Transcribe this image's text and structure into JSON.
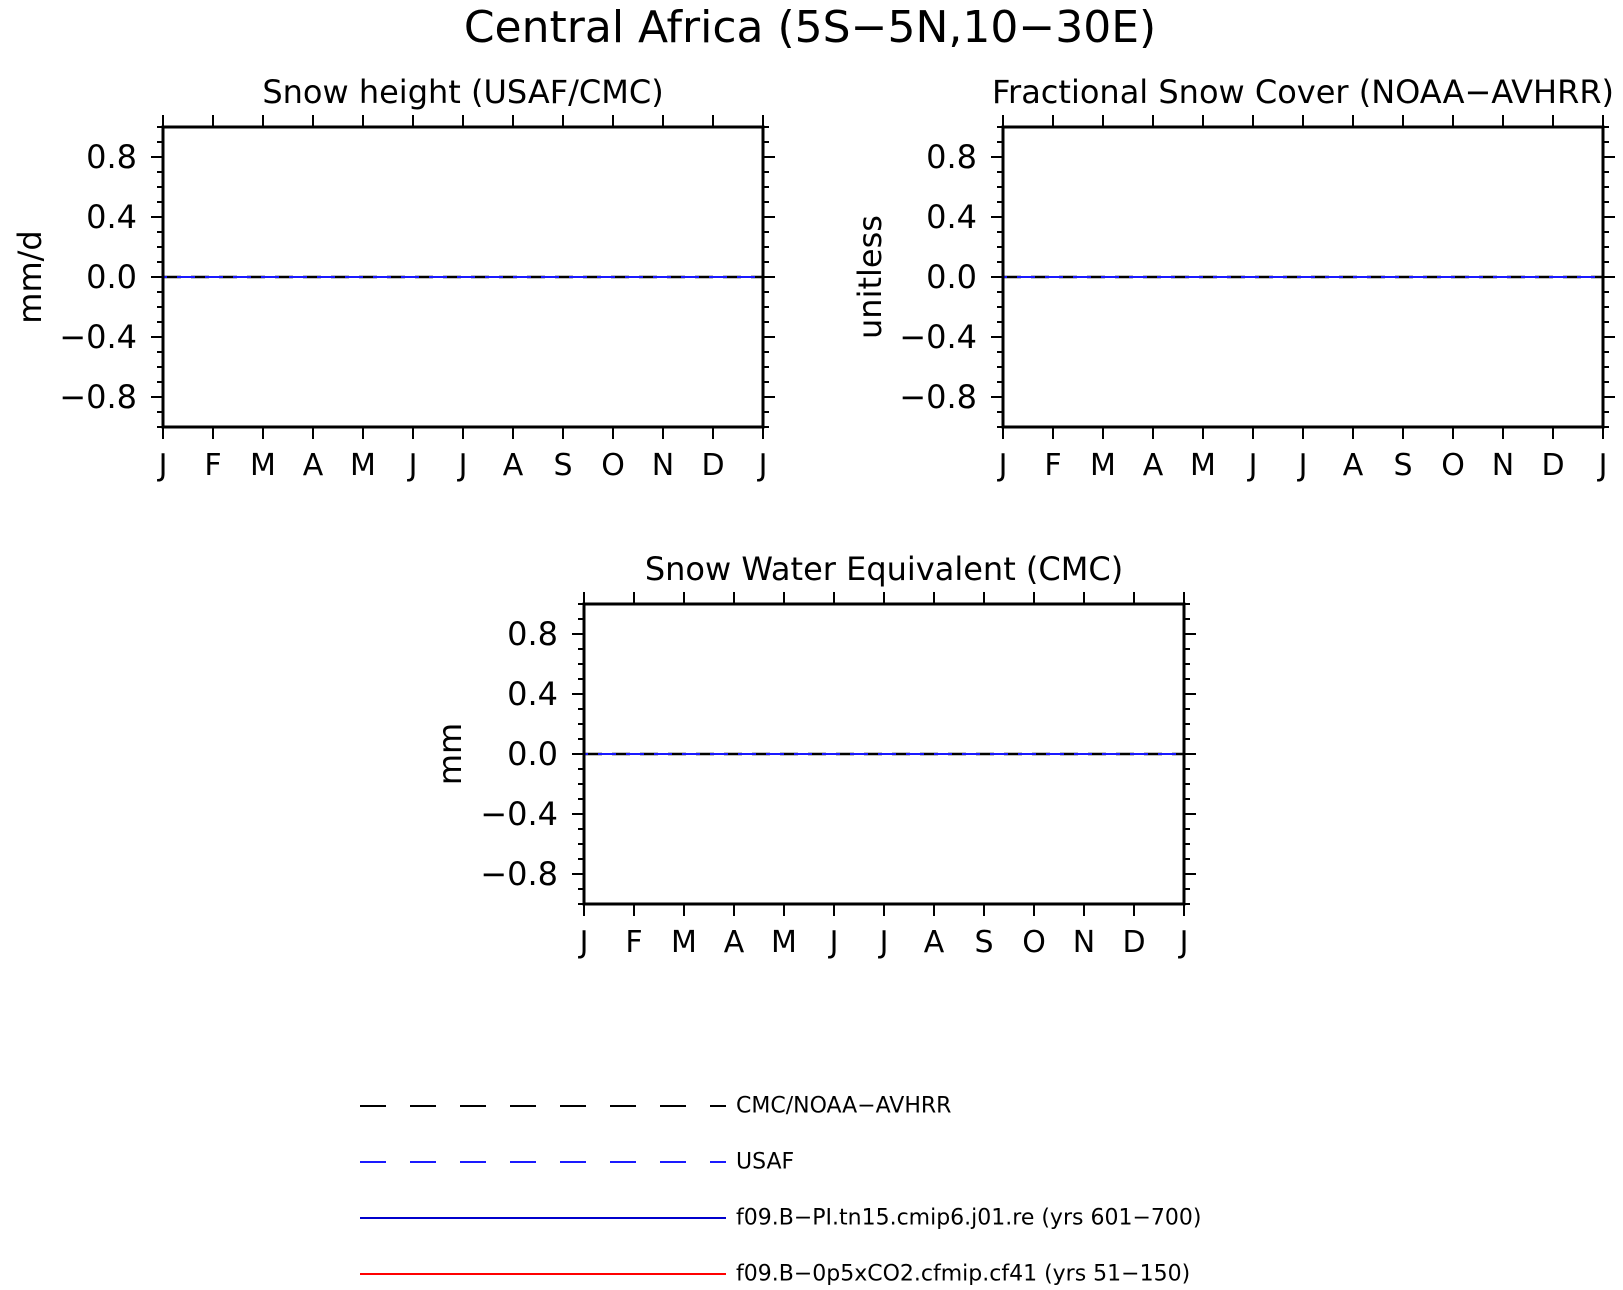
{
  "title": "Central Africa (5S−5N,10−30E)",
  "colors": {
    "frame": "#000000",
    "obs_dashed": "#000000",
    "usaf_dashed": "#1a1aff",
    "model_pi": "#0000cc",
    "model_co2": "#ff0000"
  },
  "chart_data": [
    {
      "type": "line",
      "title": "Snow height (USAF/CMC)",
      "ylabel": "mm/d",
      "xlabel": "",
      "categories": [
        "J",
        "F",
        "M",
        "A",
        "M",
        "J",
        "J",
        "A",
        "S",
        "O",
        "N",
        "D",
        "J"
      ],
      "ylim": [
        -1.0,
        1.0
      ],
      "yticks": [
        0.8,
        0.4,
        0.0,
        -0.4,
        -0.8
      ],
      "ytick_labels": [
        "0.8",
        "0.4",
        "0.0",
        "−0.4",
        "−0.8"
      ],
      "series": [
        {
          "name": "CMC/NOAA−AVHRR",
          "values": [
            0,
            0,
            0,
            0,
            0,
            0,
            0,
            0,
            0,
            0,
            0,
            0,
            0
          ]
        },
        {
          "name": "USAF",
          "values": [
            0,
            0,
            0,
            0,
            0,
            0,
            0,
            0,
            0,
            0,
            0,
            0,
            0
          ]
        }
      ]
    },
    {
      "type": "line",
      "title": "Fractional Snow Cover (NOAA−AVHRR)",
      "ylabel": "unitless",
      "xlabel": "",
      "categories": [
        "J",
        "F",
        "M",
        "A",
        "M",
        "J",
        "J",
        "A",
        "S",
        "O",
        "N",
        "D",
        "J"
      ],
      "ylim": [
        -1.0,
        1.0
      ],
      "yticks": [
        0.8,
        0.4,
        0.0,
        -0.4,
        -0.8
      ],
      "ytick_labels": [
        "0.8",
        "0.4",
        "0.0",
        "−0.4",
        "−0.8"
      ],
      "series": [
        {
          "name": "CMC/NOAA−AVHRR",
          "values": [
            0,
            0,
            0,
            0,
            0,
            0,
            0,
            0,
            0,
            0,
            0,
            0,
            0
          ]
        },
        {
          "name": "USAF",
          "values": [
            0,
            0,
            0,
            0,
            0,
            0,
            0,
            0,
            0,
            0,
            0,
            0,
            0
          ]
        }
      ]
    },
    {
      "type": "line",
      "title": "Snow Water Equivalent (CMC)",
      "ylabel": "mm",
      "xlabel": "",
      "categories": [
        "J",
        "F",
        "M",
        "A",
        "M",
        "J",
        "J",
        "A",
        "S",
        "O",
        "N",
        "D",
        "J"
      ],
      "ylim": [
        -1.0,
        1.0
      ],
      "yticks": [
        0.8,
        0.4,
        0.0,
        -0.4,
        -0.8
      ],
      "ytick_labels": [
        "0.8",
        "0.4",
        "0.0",
        "−0.4",
        "−0.8"
      ],
      "series": [
        {
          "name": "CMC/NOAA−AVHRR",
          "values": [
            0,
            0,
            0,
            0,
            0,
            0,
            0,
            0,
            0,
            0,
            0,
            0,
            0
          ]
        },
        {
          "name": "USAF",
          "values": [
            0,
            0,
            0,
            0,
            0,
            0,
            0,
            0,
            0,
            0,
            0,
            0,
            0
          ]
        }
      ]
    }
  ],
  "legend": [
    {
      "label": "CMC/NOAA−AVHRR",
      "style": "dashed",
      "color_key": "obs_dashed"
    },
    {
      "label": "USAF",
      "style": "dashed",
      "color_key": "usaf_dashed"
    },
    {
      "label": "f09.B−PI.tn15.cmip6.j01.re (yrs 601−700)",
      "style": "solid",
      "color_key": "model_pi"
    },
    {
      "label": "f09.B−0p5xCO2.cfmip.cf41 (yrs 51−150)",
      "style": "solid",
      "color_key": "model_co2"
    }
  ]
}
